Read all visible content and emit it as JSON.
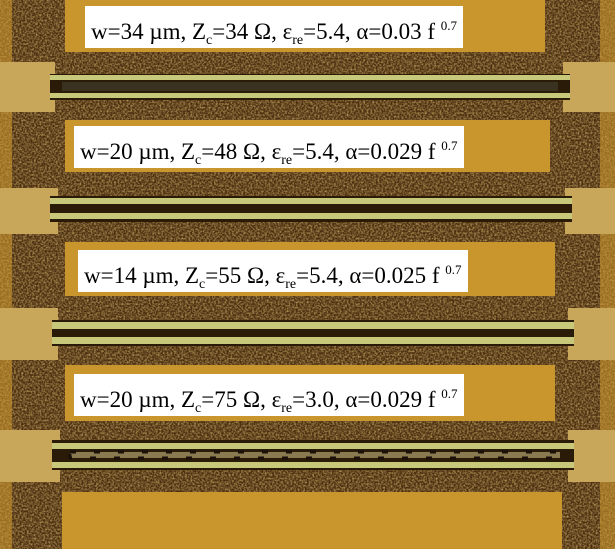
{
  "labels": [
    {
      "parts": [
        "w=34 µm, Z",
        "c",
        "=34 Ω, ε",
        "re",
        "=5.4, α=0.03 f ",
        "0.7"
      ]
    },
    {
      "parts": [
        "w=20 µm, Z",
        "c",
        "=48 Ω, ε",
        "re",
        "=5.4, α=0.029 f ",
        "0.7"
      ]
    },
    {
      "parts": [
        "w=14 µm, Z",
        "c",
        "=55 Ω, ε",
        "re",
        "=5.4, α=0.025 f ",
        "0.7"
      ]
    },
    {
      "parts": [
        "w=20 µm, Z",
        "c",
        "=75 Ω, ε",
        "re",
        "=3.0, α=0.029 f ",
        "0.7"
      ]
    }
  ]
}
